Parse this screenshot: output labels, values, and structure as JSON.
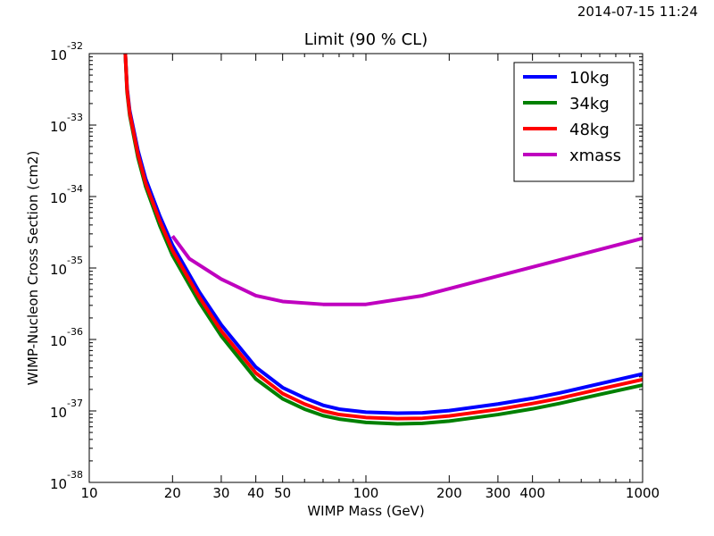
{
  "timestamp": "2014-07-15 11:24",
  "chart_data": {
    "type": "line",
    "title": "Limit (90 % CL)",
    "xlabel": "WIMP Mass (GeV)",
    "ylabel": "WIMP-Nucleon Cross Section (cm2)",
    "xscale": "log",
    "yscale": "log",
    "xlim": [
      10,
      1000
    ],
    "ylim": [
      1e-38,
      1e-32
    ],
    "xticks": [
      {
        "value": 10,
        "label": "10"
      },
      {
        "value": 20,
        "label": "20"
      },
      {
        "value": 30,
        "label": "30"
      },
      {
        "value": 40,
        "label": "40"
      },
      {
        "value": 50,
        "label": "50"
      },
      {
        "value": 100,
        "label": "100"
      },
      {
        "value": 200,
        "label": "200"
      },
      {
        "value": 300,
        "label": "300"
      },
      {
        "value": 400,
        "label": "400"
      },
      {
        "value": 1000,
        "label": "1000"
      }
    ],
    "yticks": [
      {
        "value": 1e-38,
        "base": "10",
        "exp": "-38"
      },
      {
        "value": 1e-37,
        "base": "10",
        "exp": "-37"
      },
      {
        "value": 1e-36,
        "base": "10",
        "exp": "-36"
      },
      {
        "value": 1e-35,
        "base": "10",
        "exp": "-35"
      },
      {
        "value": 1e-34,
        "base": "10",
        "exp": "-34"
      },
      {
        "value": 1e-33,
        "base": "10",
        "exp": "-33"
      },
      {
        "value": 1e-32,
        "base": "10",
        "exp": "-32"
      }
    ],
    "grid": false,
    "legend_position": "top-right",
    "series": [
      {
        "name": "10kg",
        "color": "#0000ff",
        "x": [
          13.5,
          13.7,
          14,
          15,
          16,
          18,
          20,
          25,
          30,
          40,
          50,
          60,
          70,
          80,
          100,
          130,
          160,
          200,
          300,
          400,
          500,
          700,
          1000
        ],
        "y": [
          1e-32,
          3.3e-33,
          1.6e-33,
          4.4e-34,
          1.76e-34,
          5.3e-35,
          2.08e-35,
          4.6e-36,
          1.6e-36,
          4.1e-37,
          2.12e-37,
          1.52e-37,
          1.2e-37,
          1.06e-37,
          9.6e-38,
          9.3e-38,
          9.4e-38,
          1.01e-37,
          1.25e-37,
          1.5e-37,
          1.78e-37,
          2.4e-37,
          3.3e-37
        ]
      },
      {
        "name": "34kg",
        "color": "#008000",
        "x": [
          13.5,
          13.7,
          14,
          15,
          16,
          18,
          20,
          25,
          30,
          40,
          50,
          60,
          70,
          80,
          100,
          130,
          160,
          200,
          300,
          400,
          500,
          700,
          1000
        ],
        "y": [
          1e-32,
          2.9e-33,
          1.38e-33,
          3.5e-34,
          1.37e-34,
          3.9e-35,
          1.5e-35,
          3.3e-36,
          1.12e-36,
          2.8e-37,
          1.48e-37,
          1.06e-37,
          8.6e-38,
          7.7e-38,
          6.9e-38,
          6.6e-38,
          6.7e-38,
          7.2e-38,
          8.9e-38,
          1.07e-37,
          1.27e-37,
          1.7e-37,
          2.3e-37
        ]
      },
      {
        "name": "48kg",
        "color": "#ff0000",
        "x": [
          13.5,
          13.7,
          14,
          15,
          16,
          18,
          20,
          25,
          30,
          40,
          50,
          60,
          70,
          80,
          100,
          130,
          160,
          200,
          300,
          400,
          500,
          700,
          1000
        ],
        "y": [
          1e-32,
          3.1e-33,
          1.48e-33,
          3.9e-34,
          1.52e-34,
          4.5e-35,
          1.75e-35,
          3.9e-36,
          1.32e-36,
          3.4e-37,
          1.75e-37,
          1.25e-37,
          1e-37,
          8.9e-38,
          8.1e-38,
          7.8e-38,
          7.9e-38,
          8.5e-38,
          1.05e-37,
          1.27e-37,
          1.5e-37,
          2.02e-37,
          2.75e-37
        ]
      },
      {
        "name": "xmass",
        "color": "#bf00bf",
        "x": [
          20,
          23,
          30,
          40,
          50,
          70,
          100,
          160,
          1000
        ],
        "y": [
          2.8e-35,
          1.35e-35,
          7e-36,
          4.1e-36,
          3.4e-36,
          3.1e-36,
          3.1e-36,
          4.1e-36,
          2.6e-35
        ]
      }
    ]
  }
}
